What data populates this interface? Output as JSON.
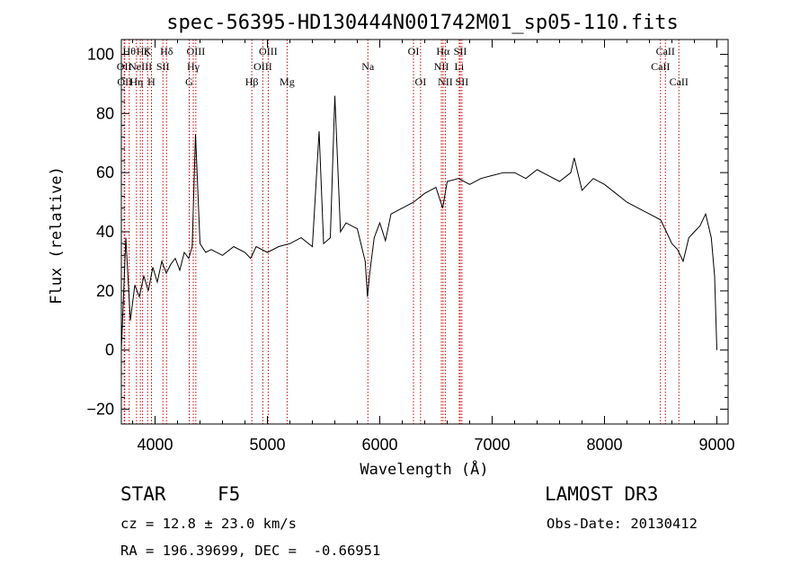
{
  "chart_data": {
    "type": "line",
    "title": "spec-56395-HD130444N001742M01_sp05-110.fits",
    "xlabel": "Wavelength (Å)",
    "ylabel": "Flux (relative)",
    "xlim": [
      3700,
      9100
    ],
    "ylim": [
      -25,
      105
    ],
    "x_ticks": [
      4000,
      5000,
      6000,
      7000,
      8000,
      9000
    ],
    "y_ticks": [
      -20,
      0,
      20,
      40,
      60,
      80,
      100
    ],
    "grid": false,
    "series": [
      {
        "name": "spectrum",
        "x": [
          3700,
          3740,
          3780,
          3820,
          3860,
          3900,
          3940,
          3980,
          4020,
          4060,
          4100,
          4140,
          4180,
          4220,
          4260,
          4300,
          4330,
          4360,
          4400,
          4450,
          4500,
          4600,
          4700,
          4800,
          4850,
          4900,
          5000,
          5100,
          5200,
          5300,
          5400,
          5460,
          5500,
          5560,
          5600,
          5650,
          5700,
          5800,
          5870,
          5890,
          5910,
          5950,
          6000,
          6050,
          6100,
          6200,
          6300,
          6400,
          6500,
          6560,
          6600,
          6700,
          6800,
          6900,
          7000,
          7100,
          7200,
          7300,
          7400,
          7500,
          7600,
          7700,
          7730,
          7800,
          7900,
          8000,
          8100,
          8200,
          8300,
          8400,
          8500,
          8550,
          8600,
          8650,
          8700,
          8750,
          8800,
          8850,
          8900,
          8950,
          8980,
          9000
        ],
        "y": [
          0,
          38,
          10,
          22,
          18,
          25,
          20,
          28,
          23,
          30,
          26,
          29,
          31,
          27,
          33,
          31,
          35,
          73,
          36,
          33,
          34,
          32,
          35,
          33,
          31,
          35,
          33,
          35,
          36,
          38,
          35,
          74,
          36,
          38,
          86,
          40,
          43,
          41,
          30,
          18,
          26,
          38,
          43,
          37,
          46,
          48,
          50,
          53,
          55,
          48,
          57,
          58,
          56,
          58,
          59,
          60,
          60,
          58,
          61,
          59,
          57,
          60,
          65,
          54,
          58,
          56,
          53,
          50,
          48,
          46,
          44,
          40,
          36,
          34,
          30,
          38,
          40,
          42,
          46,
          38,
          25,
          0
        ]
      }
    ],
    "line_markers": [
      {
        "wavelength": 3725,
        "label": "OII",
        "row": 1
      },
      {
        "wavelength": 3730,
        "label": "OII",
        "row": 2
      },
      {
        "wavelength": 3770,
        "label": "Hθ",
        "row": 0
      },
      {
        "wavelength": 3835,
        "label": "Hη",
        "row": 2
      },
      {
        "wavelength": 3869,
        "label": "NeIII",
        "row": 1
      },
      {
        "wavelength": 3889,
        "label": "Hζ",
        "row": 0
      },
      {
        "wavelength": 3934,
        "label": "K",
        "row": 0
      },
      {
        "wavelength": 3968,
        "label": "H",
        "row": 2
      },
      {
        "wavelength": 4070,
        "label": "SII",
        "row": 1
      },
      {
        "wavelength": 4102,
        "label": "Hδ",
        "row": 0
      },
      {
        "wavelength": 4304,
        "label": "G",
        "row": 2
      },
      {
        "wavelength": 4340,
        "label": "Hγ",
        "row": 1
      },
      {
        "wavelength": 4363,
        "label": "OIII",
        "row": 0
      },
      {
        "wavelength": 4861,
        "label": "Hβ",
        "row": 2
      },
      {
        "wavelength": 4959,
        "label": "OIII",
        "row": 1
      },
      {
        "wavelength": 5007,
        "label": "OIII",
        "row": 0
      },
      {
        "wavelength": 5175,
        "label": "Mg",
        "row": 2
      },
      {
        "wavelength": 5894,
        "label": "Na",
        "row": 1
      },
      {
        "wavelength": 6300,
        "label": "OI",
        "row": 0
      },
      {
        "wavelength": 6363,
        "label": "OI",
        "row": 2
      },
      {
        "wavelength": 6548,
        "label": "NII",
        "row": 1
      },
      {
        "wavelength": 6563,
        "label": "Hα",
        "row": 0
      },
      {
        "wavelength": 6583,
        "label": "NII",
        "row": 2
      },
      {
        "wavelength": 6707,
        "label": "Li",
        "row": 1
      },
      {
        "wavelength": 6716,
        "label": "SII",
        "row": 0
      },
      {
        "wavelength": 6731,
        "label": "SII",
        "row": 2
      },
      {
        "wavelength": 8498,
        "label": "CaII",
        "row": 1
      },
      {
        "wavelength": 8542,
        "label": "CaII",
        "row": 0
      },
      {
        "wavelength": 8662,
        "label": "CaII",
        "row": 2
      }
    ]
  },
  "info": {
    "object_class": "STAR",
    "subclass": "F5",
    "survey": "LAMOST DR3",
    "redshift_text": "cz = 12.8 ± 23.0 km/s",
    "obs_date_text": "Obs-Date: 20130412",
    "coords_text": "RA = 196.39699, DEC =  -0.66951"
  },
  "colors": {
    "spectrum": "#000000",
    "line_marker": "#cc0000",
    "axes": "#000000"
  }
}
